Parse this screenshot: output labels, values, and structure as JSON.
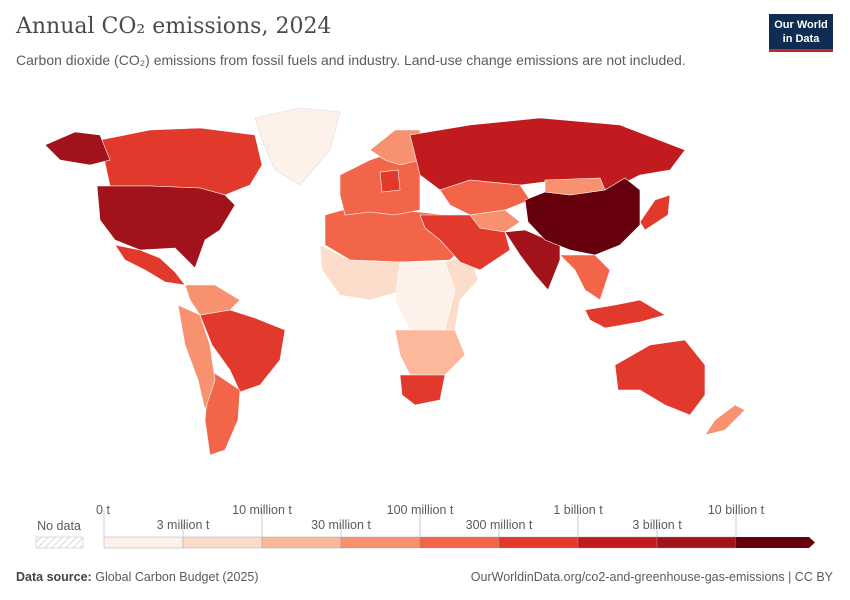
{
  "header": {
    "title": "Annual CO₂ emissions, 2024",
    "subtitle": "Carbon dioxide (CO₂) emissions from fossil fuels and industry. Land-use change emissions are not included.",
    "logo": "Our World in Data"
  },
  "legend": {
    "no_data_label": "No data",
    "ticks_top": [
      "0 t",
      "10 million t",
      "100 million t",
      "1 billion t",
      "10 billion t"
    ],
    "ticks_bottom": [
      "3 million t",
      "30 million t",
      "300 million t",
      "3 billion t"
    ],
    "colors": [
      "#fef1ea",
      "#fcdcca",
      "#fbb89b",
      "#f8916f",
      "#f26548",
      "#e2392d",
      "#c21b1f",
      "#a1121a",
      "#67000d"
    ]
  },
  "map": {
    "regions": [
      {
        "name": "Canada",
        "bin": 5
      },
      {
        "name": "United States",
        "bin": 7
      },
      {
        "name": "Alaska",
        "bin": 7
      },
      {
        "name": "Greenland",
        "bin": 0
      },
      {
        "name": "Mexico",
        "bin": 5
      },
      {
        "name": "Brazil",
        "bin": 5
      },
      {
        "name": "Argentina",
        "bin": 4
      },
      {
        "name": "Andes",
        "bin": 3
      },
      {
        "name": "Northern South America",
        "bin": 3
      },
      {
        "name": "North Africa",
        "bin": 4
      },
      {
        "name": "West Africa",
        "bin": 1
      },
      {
        "name": "Central Africa",
        "bin": 0
      },
      {
        "name": "East Africa",
        "bin": 1
      },
      {
        "name": "Southern Africa",
        "bin": 2
      },
      {
        "name": "South Africa",
        "bin": 5
      },
      {
        "name": "Europe",
        "bin": 4
      },
      {
        "name": "Germany",
        "bin": 5
      },
      {
        "name": "Scandinavia",
        "bin": 3
      },
      {
        "name": "Russia",
        "bin": 6
      },
      {
        "name": "Kazakhstan",
        "bin": 4
      },
      {
        "name": "Middle East",
        "bin": 5
      },
      {
        "name": "India",
        "bin": 7
      },
      {
        "name": "China",
        "bin": 8
      },
      {
        "name": "Southeast Asia",
        "bin": 4
      },
      {
        "name": "Indonesia",
        "bin": 5
      },
      {
        "name": "Japan",
        "bin": 5
      },
      {
        "name": "Australia",
        "bin": 5
      },
      {
        "name": "New Zealand",
        "bin": 3
      },
      {
        "name": "Mongolia",
        "bin": 3
      },
      {
        "name": "Central Asia",
        "bin": 3
      }
    ]
  },
  "footer": {
    "source_label": "Data source:",
    "source": "Global Carbon Budget (2025)",
    "url": "OurWorldinData.org/co2-and-greenhouse-gas-emissions | CC BY"
  }
}
